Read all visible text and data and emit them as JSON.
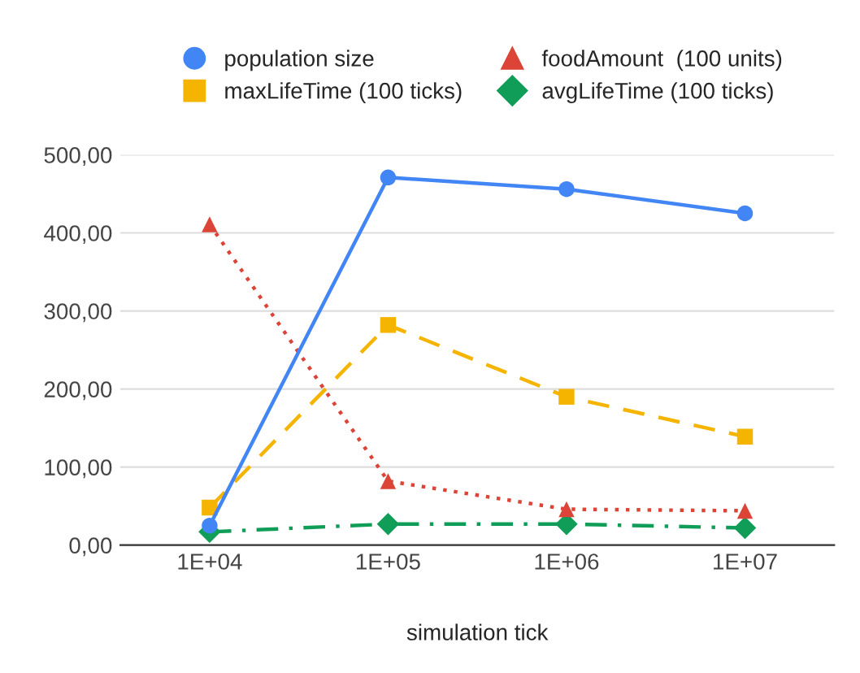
{
  "chart_data": {
    "type": "line",
    "xlabel": "simulation tick",
    "categories": [
      "1E+04",
      "1E+05",
      "1E+06",
      "1E+07"
    ],
    "series": [
      {
        "name": "population size",
        "color": "#4285f4",
        "marker": "circle",
        "line_style": "solid",
        "values": [
          25,
          471,
          456,
          425
        ]
      },
      {
        "name": "foodAmount  (100 units)",
        "color": "#db4437",
        "marker": "triangle",
        "line_style": "dotted",
        "values": [
          411,
          82,
          46,
          44
        ]
      },
      {
        "name": "maxLifeTime (100 ticks)",
        "color": "#f4b400",
        "marker": "square",
        "line_style": "dashed",
        "values": [
          48,
          282,
          190,
          139
        ]
      },
      {
        "name": "avgLifeTime (100 ticks)",
        "color": "#0f9d58",
        "marker": "diamond",
        "line_style": "dashdot",
        "values": [
          17,
          27,
          27,
          22
        ]
      }
    ],
    "ylim": [
      0,
      500
    ],
    "yticks": [
      {
        "value": 0,
        "label": "0,00"
      },
      {
        "value": 100,
        "label": "100,00"
      },
      {
        "value": 200,
        "label": "200,00"
      },
      {
        "value": 300,
        "label": "300,00"
      },
      {
        "value": 400,
        "label": "400,00"
      },
      {
        "value": 500,
        "label": "500,00"
      }
    ],
    "grid": "y",
    "legend": "top"
  }
}
